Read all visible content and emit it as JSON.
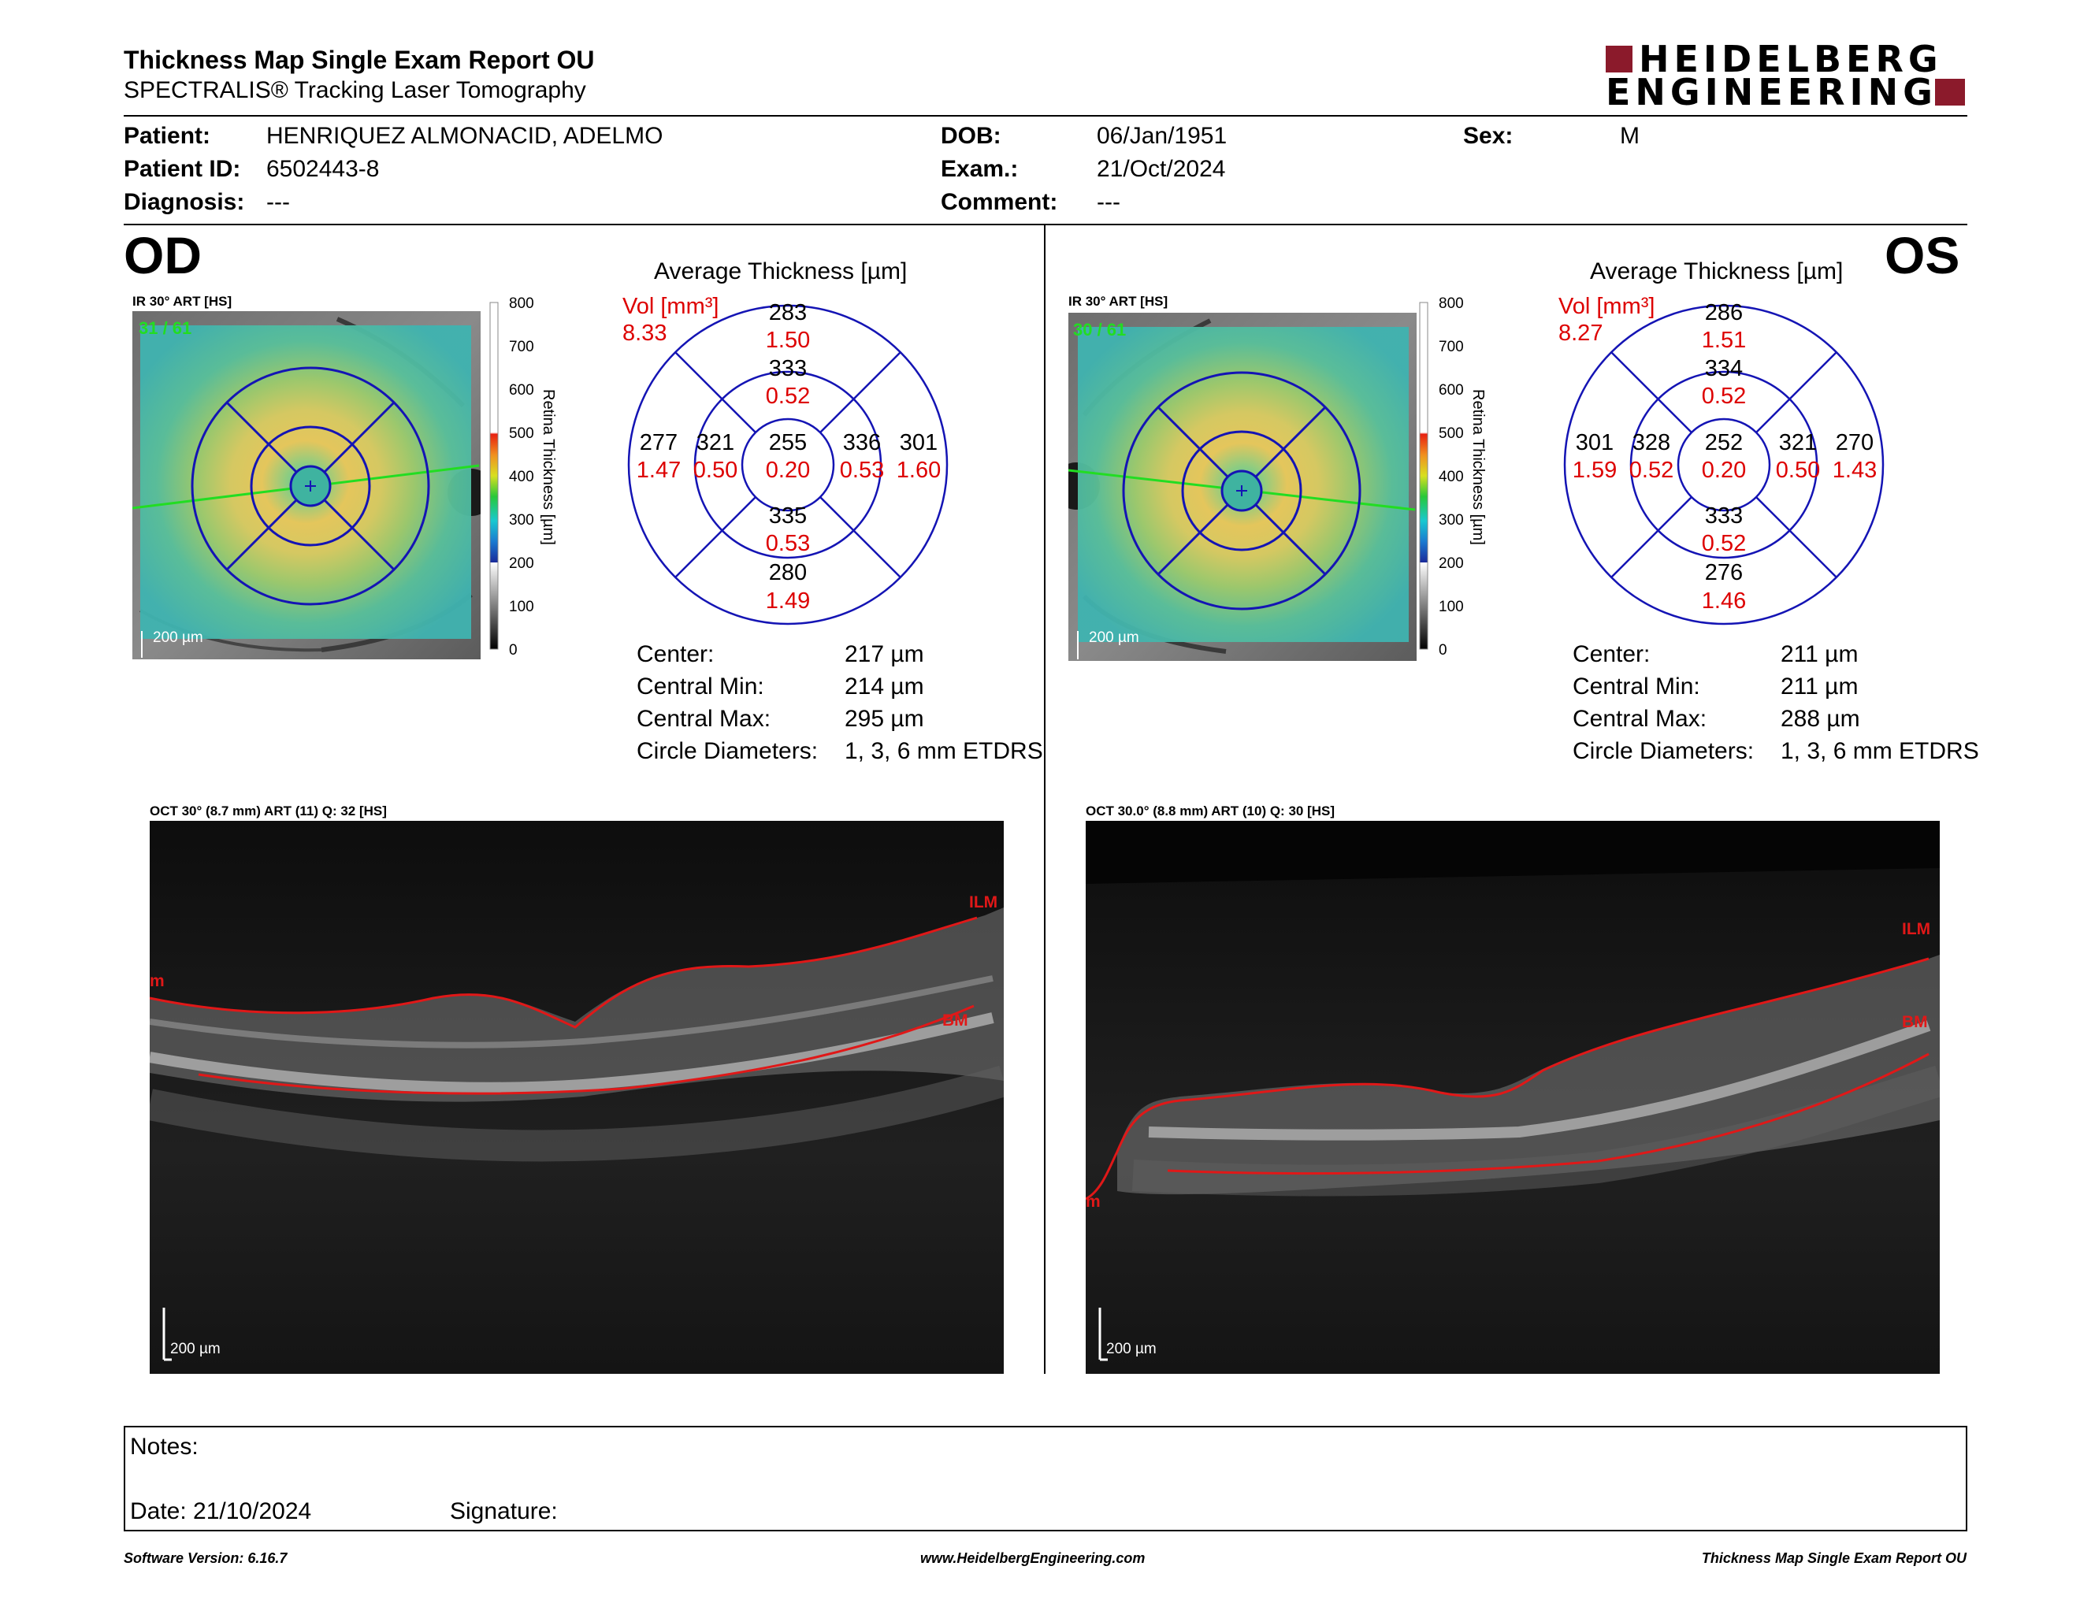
{
  "header": {
    "title": "Thickness Map Single Exam Report OU",
    "subtitle": "SPECTRALIS® Tracking Laser Tomography",
    "logo_line1": "HEIDELBERG",
    "logo_line2": "ENGINEERING",
    "brand_color": "#8b1a2b"
  },
  "patient": {
    "patient_label": "Patient:",
    "patient_value": "HENRIQUEZ ALMONACID, ADELMO",
    "id_label": "Patient ID:",
    "id_value": "6502443-8",
    "diag_label": "Diagnosis:",
    "diag_value": "---",
    "dob_label": "DOB:",
    "dob_value": "06/Jan/1951",
    "exam_label": "Exam.:",
    "exam_value": "21/Oct/2024",
    "comment_label": "Comment:",
    "comment_value": "---",
    "sex_label": "Sex:",
    "sex_value": "M"
  },
  "od": {
    "eye": "OD",
    "ir_caption": "IR 30° ART [HS]",
    "ir_count": "31 / 61",
    "scale_label": "200 µm",
    "colorbar_ticks": [
      "800",
      "700",
      "600",
      "500",
      "400",
      "300",
      "200",
      "100",
      "0"
    ],
    "colorbar_label": "Retina Thickness [µm]",
    "avg_title": "Average Thickness [µm]",
    "vol_label": "Vol [mm³]",
    "vol_value": "8.33",
    "sectors": {
      "center": {
        "t": "255",
        "v": "0.20"
      },
      "inner_sup": {
        "t": "333",
        "v": "0.52"
      },
      "inner_inf": {
        "t": "335",
        "v": "0.53"
      },
      "inner_left": {
        "t": "321",
        "v": "0.50"
      },
      "inner_right": {
        "t": "336",
        "v": "0.53"
      },
      "outer_sup": {
        "t": "283",
        "v": "1.50"
      },
      "outer_inf": {
        "t": "280",
        "v": "1.49"
      },
      "outer_left": {
        "t": "277",
        "v": "1.47"
      },
      "outer_right": {
        "t": "301",
        "v": "1.60"
      }
    },
    "stats": [
      {
        "label": "Center:",
        "value": "217 µm"
      },
      {
        "label": "Central Min:",
        "value": "214 µm"
      },
      {
        "label": "Central Max:",
        "value": "295 µm"
      },
      {
        "label": "Circle Diameters:",
        "value": "1, 3, 6 mm ETDRS"
      }
    ],
    "oct_caption": "OCT 30° (8.7 mm) ART (11) Q: 32 [HS]",
    "ilm": "ILM",
    "bm": "BM",
    "ilm_left": "m",
    "oct_scale": "200 µm"
  },
  "os": {
    "eye": "OS",
    "ir_caption": "IR 30° ART [HS]",
    "ir_count": "30 / 61",
    "scale_label": "200 µm",
    "colorbar_ticks": [
      "800",
      "700",
      "600",
      "500",
      "400",
      "300",
      "200",
      "100",
      "0"
    ],
    "colorbar_label": "Retina Thickness [µm]",
    "avg_title": "Average Thickness [µm]",
    "vol_label": "Vol [mm³]",
    "vol_value": "8.27",
    "sectors": {
      "center": {
        "t": "252",
        "v": "0.20"
      },
      "inner_sup": {
        "t": "334",
        "v": "0.52"
      },
      "inner_inf": {
        "t": "333",
        "v": "0.52"
      },
      "inner_left": {
        "t": "328",
        "v": "0.52"
      },
      "inner_right": {
        "t": "321",
        "v": "0.50"
      },
      "outer_sup": {
        "t": "286",
        "v": "1.51"
      },
      "outer_inf": {
        "t": "276",
        "v": "1.46"
      },
      "outer_left": {
        "t": "301",
        "v": "1.59"
      },
      "outer_right": {
        "t": "270",
        "v": "1.43"
      }
    },
    "stats": [
      {
        "label": "Center:",
        "value": "211 µm"
      },
      {
        "label": "Central Min:",
        "value": "211 µm"
      },
      {
        "label": "Central Max:",
        "value": "288 µm"
      },
      {
        "label": "Circle Diameters:",
        "value": "1, 3, 6 mm ETDRS"
      }
    ],
    "oct_caption": "OCT 30.0° (8.8 mm) ART (10) Q: 30 [HS]",
    "ilm": "ILM",
    "bm": "BM",
    "ilm_left": "m",
    "oct_scale": "200 µm"
  },
  "notes": {
    "notes_label": "Notes:",
    "date_label": "Date: 21/10/2024",
    "signature_label": "Signature:"
  },
  "footer": {
    "software": "Software Version: 6.16.7",
    "website": "www.HeidelbergEngineering.com",
    "report": "Thickness Map Single Exam Report OU"
  }
}
